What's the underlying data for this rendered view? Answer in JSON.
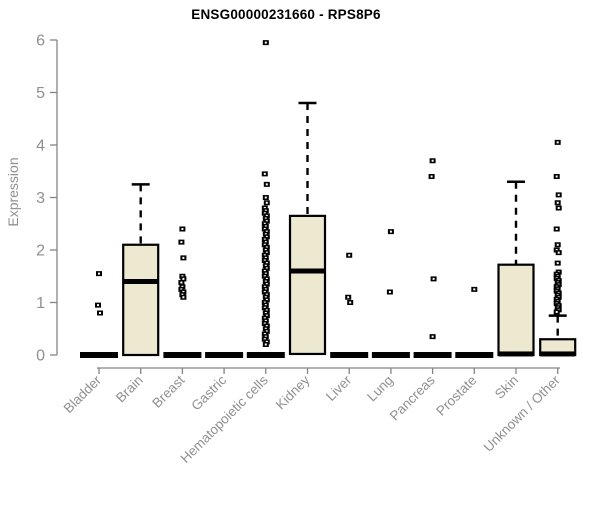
{
  "colors": {
    "background": "#FFFFFF",
    "box_fill": "#EDE8D0",
    "box_border": "#000000",
    "median": "#000000",
    "whisker": "#000000",
    "outlier": "#000000",
    "axis": "#858585",
    "text": "#909090",
    "title": "#000000"
  },
  "chart_data": {
    "type": "boxplot",
    "title": "ENSG00000231660 - RPS8P6",
    "xlabel": "",
    "ylabel": "Expression",
    "ylim": [
      0,
      6
    ],
    "y_ticks": [
      0,
      1,
      2,
      3,
      4,
      5,
      6
    ],
    "grid": false,
    "categories": [
      "Bladder",
      "Brain",
      "Breast",
      "Gastric",
      "Hematopoietic cells",
      "Kidney",
      "Liver",
      "Lung",
      "Pancreas",
      "Prostate",
      "Skin",
      "Unknown / Other"
    ],
    "series": [
      {
        "category": "Bladder",
        "q1": 0,
        "median": 0,
        "q3": 0,
        "whisker_low": 0,
        "whisker_high": 0,
        "outliers": [
          1.55,
          0.95,
          0.8
        ]
      },
      {
        "category": "Brain",
        "q1": 0,
        "median": 1.4,
        "q3": 2.1,
        "whisker_low": 0,
        "whisker_high": 3.25,
        "outliers": []
      },
      {
        "category": "Breast",
        "q1": 0,
        "median": 0,
        "q3": 0,
        "whisker_low": 0,
        "whisker_high": 0,
        "outliers": [
          2.4,
          2.15,
          1.85,
          1.5,
          1.45,
          1.38,
          1.3,
          1.25,
          1.2,
          1.15,
          1.1
        ]
      },
      {
        "category": "Gastric",
        "q1": 0,
        "median": 0,
        "q3": 0,
        "whisker_low": 0,
        "whisker_high": 0,
        "outliers": []
      },
      {
        "category": "Hematopoietic cells",
        "q1": 0,
        "median": 0,
        "q3": 0,
        "whisker_low": 0,
        "whisker_high": 0,
        "outliers": [
          5.95,
          3.45,
          3.25,
          3.0,
          2.9,
          2.8,
          2.75,
          2.7,
          2.65,
          2.6,
          2.55,
          2.5,
          2.45,
          2.4,
          2.35,
          2.3,
          2.25,
          2.2,
          2.15,
          2.1,
          2.05,
          2.0,
          1.95,
          1.9,
          1.85,
          1.8,
          1.75,
          1.7,
          1.65,
          1.6,
          1.55,
          1.5,
          1.45,
          1.4,
          1.35,
          1.3,
          1.25,
          1.2,
          1.15,
          1.1,
          1.05,
          1.0,
          0.95,
          0.9,
          0.85,
          0.8,
          0.75,
          0.7,
          0.65,
          0.6,
          0.55,
          0.5,
          0.45,
          0.4,
          0.35,
          0.3,
          0.25,
          0.2
        ]
      },
      {
        "category": "Kidney",
        "q1": 0.02,
        "median": 1.6,
        "q3": 2.65,
        "whisker_low": 0,
        "whisker_high": 4.8,
        "outliers": []
      },
      {
        "category": "Liver",
        "q1": 0,
        "median": 0,
        "q3": 0,
        "whisker_low": 0,
        "whisker_high": 0,
        "outliers": [
          1.9,
          1.1,
          1.0
        ]
      },
      {
        "category": "Lung",
        "q1": 0,
        "median": 0,
        "q3": 0,
        "whisker_low": 0,
        "whisker_high": 0,
        "outliers": [
          2.35,
          1.2
        ]
      },
      {
        "category": "Pancreas",
        "q1": 0,
        "median": 0,
        "q3": 0,
        "whisker_low": 0,
        "whisker_high": 0,
        "outliers": [
          3.7,
          3.4,
          1.45,
          0.35
        ]
      },
      {
        "category": "Prostate",
        "q1": 0,
        "median": 0,
        "q3": 0,
        "whisker_low": 0,
        "whisker_high": 0,
        "outliers": [
          1.25
        ]
      },
      {
        "category": "Skin",
        "q1": 0,
        "median": 0.02,
        "q3": 1.72,
        "whisker_low": 0,
        "whisker_high": 3.3,
        "outliers": []
      },
      {
        "category": "Unknown / Other",
        "q1": 0,
        "median": 0.02,
        "q3": 0.3,
        "whisker_low": 0,
        "whisker_high": 0.75,
        "outliers": [
          4.05,
          3.4,
          3.05,
          2.9,
          2.8,
          2.4,
          2.1,
          2.0,
          1.95,
          1.75,
          1.58,
          1.54,
          1.5,
          1.46,
          1.42,
          1.38,
          1.34,
          1.3,
          1.26,
          1.22,
          1.18,
          1.14,
          1.1,
          1.06,
          1.02,
          0.98,
          0.94,
          0.9,
          0.86,
          0.82
        ]
      }
    ]
  }
}
